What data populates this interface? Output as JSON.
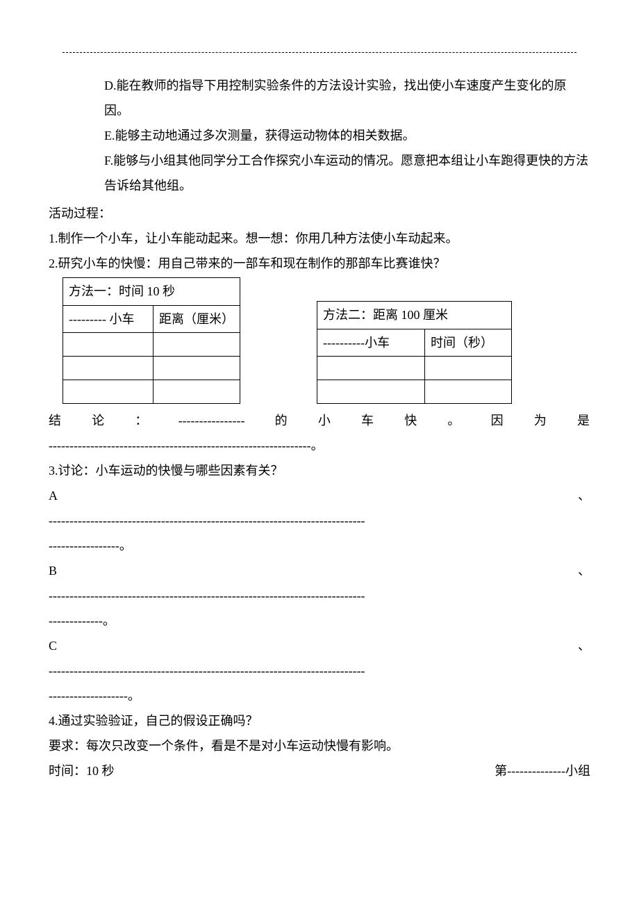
{
  "items": {
    "d": "D.能在教师的指导下用控制实验条件的方法设计实验，找出使小车速度产生变化的原因。",
    "e": "E.能够主动地通过多次测量，获得运动物体的相关数据。",
    "f": "F.能够与小组其他同学分工合作探究小车运动的情况。愿意把本组让小车跑得更快的方法告诉给其他组。"
  },
  "process_head": "活动过程：",
  "q1": "1.制作一个小车，让小车能动起来。想一想：你用几种方法使小车动起来。",
  "q2": "2.研究小车的快慢：用自己带来的一部车和现在制作的那部车比赛谁快？",
  "table1": {
    "title": "方法一：时间 10 秒",
    "col1": "--------- 小车",
    "col2": "距离（厘米）"
  },
  "table2": {
    "title": "方法二：距离 100 厘米",
    "col1": "----------小车",
    "col2": "时间（秒）"
  },
  "conclusion": {
    "line1_parts": [
      "结",
      "论",
      "：",
      "----------------",
      "的",
      "小",
      "车",
      "快",
      "。",
      "因",
      "为",
      "是"
    ],
    "line2": "---------------------------------------------------------------。"
  },
  "q3": {
    "head": "3.讨论：小车运动的快慢与哪些因素有关？",
    "a_label": "A",
    "a_tail": "、",
    "a_line": "----------------------------------------------------------------------------",
    "a_end": "-----------------。",
    "b_label": "B",
    "b_tail": "、",
    "b_line": "----------------------------------------------------------------------------",
    "b_end": "-------------。",
    "c_label": "C",
    "c_tail": "、",
    "c_line": "----------------------------------------------------------------------------",
    "c_end": "-------------------。"
  },
  "q4": {
    "head": "4.通过实验验证，自己的假设正确吗？",
    "req": "要求：每次只改变一个条件，看是不是对小车运动快慢有影响。",
    "time": "时间：10 秒",
    "group": "第--------------小组"
  }
}
